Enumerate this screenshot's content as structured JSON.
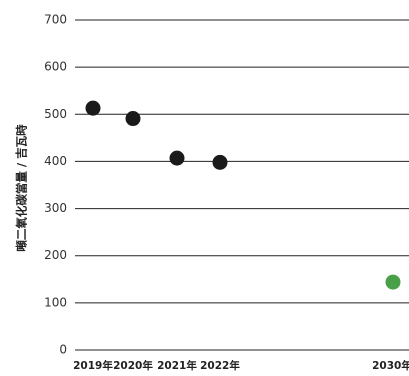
{
  "chart_data": {
    "type": "scatter",
    "ylabel": "噸二氧化碳當量 / 吉瓦時",
    "categories": [
      "2019年",
      "2020年",
      "2021年",
      "2022年",
      "2030年"
    ],
    "x": [
      2019,
      2020,
      2021,
      2022,
      2030
    ],
    "ylim": [
      0,
      700
    ],
    "yticks": [
      0,
      100,
      200,
      300,
      400,
      500,
      600,
      700
    ],
    "grid": true,
    "series": [
      {
        "points": [
          {
            "x": 2019,
            "y": 513
          },
          {
            "x": 2020,
            "y": 491
          },
          {
            "x": 2021,
            "y": 407
          },
          {
            "x": 2022,
            "y": 398
          }
        ],
        "color": "#1a1a1a"
      },
      {
        "points": [
          {
            "x": 2030,
            "y": 144
          }
        ],
        "color": "#4aa04a"
      }
    ]
  }
}
